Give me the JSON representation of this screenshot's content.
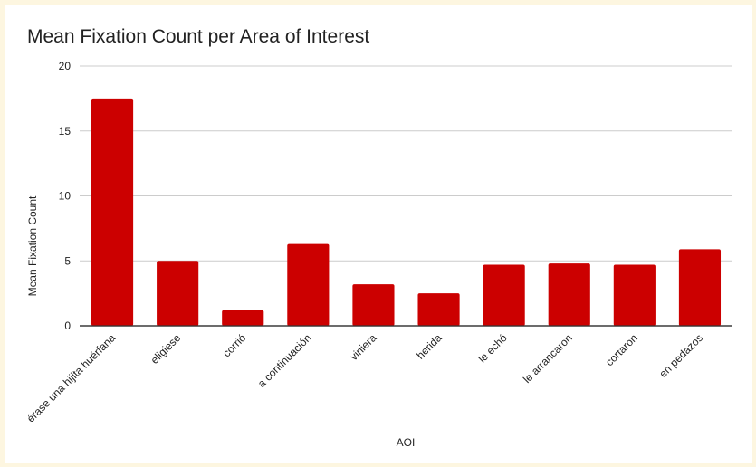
{
  "chart_data": {
    "type": "bar",
    "title": "Mean Fixation Count per Area of Interest",
    "xlabel": "AOI",
    "ylabel": "Mean Fixation Count",
    "categories": [
      "érase una hijita huérfana",
      "eligiese",
      "corrió",
      "a continuación",
      "viniera",
      "herida",
      "le echó",
      "le arrancaron",
      "cortaron",
      "en pedazos"
    ],
    "values": [
      17.5,
      5.0,
      1.2,
      6.3,
      3.2,
      2.5,
      4.7,
      4.8,
      4.7,
      5.9
    ],
    "ylim": [
      0,
      20
    ],
    "yticks": [
      0,
      5,
      10,
      15,
      20
    ],
    "grid": true,
    "legend": "none",
    "bar_color": "#cc0000"
  }
}
